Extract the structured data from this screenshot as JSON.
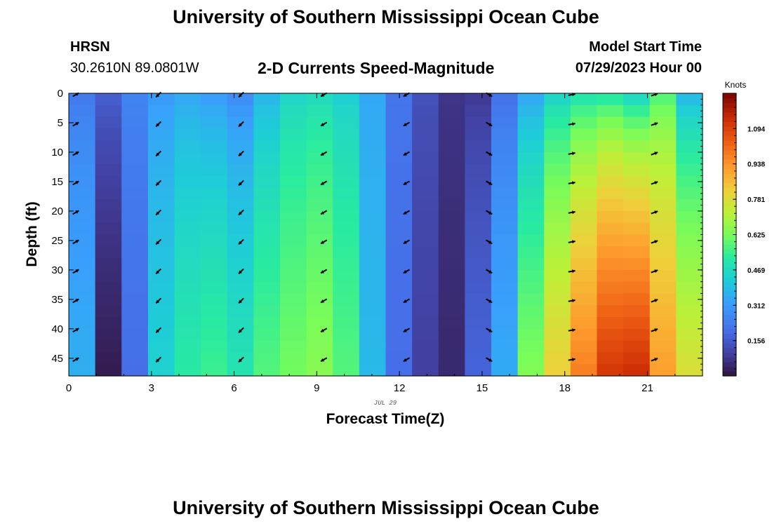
{
  "header": {
    "title": "University of Southern Mississippi Ocean Cube",
    "station": "HRSN",
    "coordinates": "30.2610N  89.0801W",
    "chart_title": "2-D Currents Speed-Magnitude",
    "model_start_label": "Model Start Time",
    "model_start_value": "07/29/2023 Hour 00"
  },
  "footer": {
    "repeated_title": "University of Southern Mississippi Ocean Cube"
  },
  "chart_data": {
    "type": "heatmap",
    "title": "2-D Currents Speed-Magnitude",
    "xlabel": "Forecast Time(Z)",
    "ylabel": "Depth (ft)",
    "date_label": "JUL 29",
    "xlim": [
      0,
      23
    ],
    "ylim": [
      0,
      48
    ],
    "xticks": [
      "0",
      "3",
      "6",
      "9",
      "12",
      "15",
      "18",
      "21"
    ],
    "yticks": [
      "0",
      "5",
      "10",
      "15",
      "20",
      "25",
      "30",
      "35",
      "40",
      "45"
    ],
    "colorbar": {
      "label": "Knots",
      "range": [
        0,
        1.25
      ],
      "ticks": [
        "0.156",
        "0.312",
        "0.469",
        "0.625",
        "0.781",
        "0.938",
        "1.094"
      ]
    },
    "hours": [
      0,
      1,
      2,
      3,
      4,
      5,
      6,
      7,
      8,
      9,
      10,
      11,
      12,
      13,
      14,
      15,
      16,
      17,
      18,
      19,
      20,
      21,
      22,
      23
    ],
    "speed_knots_surface": [
      0.22,
      0.18,
      0.26,
      0.3,
      0.33,
      0.3,
      0.26,
      0.36,
      0.44,
      0.46,
      0.42,
      0.34,
      0.22,
      0.14,
      0.08,
      0.08,
      0.2,
      0.32,
      0.42,
      0.46,
      0.46,
      0.4,
      0.55,
      0.35
    ],
    "speed_knots_bottom": [
      0.36,
      0.02,
      0.2,
      0.44,
      0.52,
      0.55,
      0.5,
      0.58,
      0.62,
      0.65,
      0.58,
      0.38,
      0.2,
      0.1,
      0.05,
      0.18,
      0.35,
      0.64,
      0.82,
      0.98,
      1.12,
      1.14,
      0.92,
      0.78
    ],
    "arrow_hours": [
      0,
      3,
      6,
      9,
      12,
      15,
      18,
      21
    ],
    "arrow_depths": [
      0,
      5,
      10,
      15,
      20,
      25,
      30,
      35,
      40,
      45
    ],
    "arrow_directions_deg": [
      60,
      225,
      225,
      240,
      240,
      120,
      80,
      70
    ]
  }
}
